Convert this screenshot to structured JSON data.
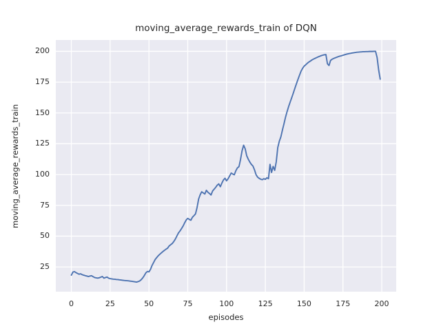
{
  "colors": {
    "figure_bg": "#FFFFFF",
    "axes_bg": "#EAEAF2",
    "grid": "#FFFFFF",
    "text": "#262626",
    "line": "#4C72B0"
  },
  "chart_data": {
    "type": "line",
    "title": "moving_average_rewards_train of DQN",
    "xlabel": "episodes",
    "ylabel": "moving_average_rewards_train",
    "xlim": [
      -10.0,
      209.3
    ],
    "ylim": [
      4.9,
      209.2
    ],
    "x_ticks": [
      0,
      25,
      50,
      75,
      100,
      125,
      150,
      175,
      200
    ],
    "y_ticks": [
      25,
      50,
      75,
      100,
      125,
      150,
      175,
      200
    ],
    "grid": true,
    "legend_position": "none",
    "series": [
      {
        "name": "moving_average_rewards_train",
        "color": "#4C72B0",
        "points": [
          [
            0,
            18.3
          ],
          [
            1,
            20.8
          ],
          [
            2,
            21.2
          ],
          [
            3,
            20.4
          ],
          [
            4,
            19.7
          ],
          [
            5,
            19.1
          ],
          [
            6,
            19.4
          ],
          [
            7,
            18.7
          ],
          [
            8,
            18.3
          ],
          [
            9,
            17.9
          ],
          [
            10,
            17.6
          ],
          [
            11,
            17.2
          ],
          [
            12,
            17.6
          ],
          [
            13,
            17.9
          ],
          [
            14,
            17.1
          ],
          [
            15,
            16.4
          ],
          [
            16,
            16.1
          ],
          [
            17,
            15.9
          ],
          [
            18,
            16.2
          ],
          [
            19,
            16.7
          ],
          [
            20,
            17.2
          ],
          [
            21,
            15.9
          ],
          [
            22,
            16.4
          ],
          [
            23,
            16.8
          ],
          [
            24,
            15.9
          ],
          [
            25,
            15.5
          ],
          [
            26,
            15.3
          ],
          [
            27,
            15.1
          ],
          [
            28,
            15.0
          ],
          [
            29,
            14.8
          ],
          [
            30,
            14.7
          ],
          [
            31,
            14.5
          ],
          [
            32,
            14.4
          ],
          [
            33,
            14.2
          ],
          [
            34,
            14.0
          ],
          [
            35,
            13.9
          ],
          [
            36,
            13.8
          ],
          [
            37,
            13.7
          ],
          [
            38,
            13.5
          ],
          [
            39,
            13.3
          ],
          [
            40,
            13.1
          ],
          [
            41,
            12.9
          ],
          [
            42,
            12.7
          ],
          [
            43,
            13.1
          ],
          [
            44,
            13.6
          ],
          [
            45,
            14.6
          ],
          [
            46,
            16.1
          ],
          [
            47,
            18.0
          ],
          [
            48,
            20.2
          ],
          [
            49,
            21.3
          ],
          [
            50,
            21.0
          ],
          [
            51,
            23.0
          ],
          [
            52,
            26.2
          ],
          [
            53,
            28.6
          ],
          [
            54,
            31.0
          ],
          [
            55,
            32.6
          ],
          [
            56,
            34.1
          ],
          [
            57,
            35.3
          ],
          [
            58,
            36.4
          ],
          [
            59,
            37.5
          ],
          [
            60,
            38.5
          ],
          [
            61,
            39.4
          ],
          [
            62,
            40.2
          ],
          [
            63,
            42.0
          ],
          [
            64,
            43.0
          ],
          [
            65,
            44.0
          ],
          [
            66,
            45.6
          ],
          [
            67,
            47.6
          ],
          [
            68,
            50.1
          ],
          [
            69,
            52.6
          ],
          [
            70,
            54.2
          ],
          [
            71,
            56.1
          ],
          [
            72,
            58.2
          ],
          [
            73,
            60.8
          ],
          [
            74,
            63.1
          ],
          [
            75,
            64.4
          ],
          [
            76,
            63.6
          ],
          [
            77,
            62.9
          ],
          [
            78,
            65.3
          ],
          [
            79,
            66.6
          ],
          [
            80,
            68.1
          ],
          [
            81,
            73.2
          ],
          [
            82,
            80.1
          ],
          [
            83,
            83.6
          ],
          [
            84,
            86.0
          ],
          [
            85,
            85.1
          ],
          [
            86,
            84.2
          ],
          [
            87,
            87.2
          ],
          [
            88,
            85.6
          ],
          [
            89,
            84.6
          ],
          [
            90,
            83.4
          ],
          [
            91,
            86.6
          ],
          [
            92,
            88.1
          ],
          [
            93,
            89.6
          ],
          [
            94,
            91.4
          ],
          [
            95,
            92.4
          ],
          [
            96,
            90.1
          ],
          [
            97,
            93.1
          ],
          [
            98,
            95.6
          ],
          [
            99,
            97.0
          ],
          [
            100,
            94.9
          ],
          [
            101,
            96.6
          ],
          [
            102,
            98.9
          ],
          [
            103,
            101.2
          ],
          [
            104,
            100.4
          ],
          [
            105,
            99.8
          ],
          [
            106,
            103.1
          ],
          [
            107,
            105.4
          ],
          [
            108,
            106.4
          ],
          [
            109,
            112.2
          ],
          [
            110,
            119.3
          ],
          [
            111,
            123.8
          ],
          [
            112,
            120.9
          ],
          [
            113,
            115.2
          ],
          [
            114,
            112.4
          ],
          [
            115,
            110.1
          ],
          [
            116,
            108.2
          ],
          [
            117,
            106.9
          ],
          [
            118,
            103.8
          ],
          [
            119,
            99.9
          ],
          [
            120,
            97.9
          ],
          [
            121,
            96.9
          ],
          [
            122,
            96.2
          ],
          [
            123,
            95.8
          ],
          [
            124,
            96.6
          ],
          [
            125,
            96.1
          ],
          [
            126,
            97.4
          ],
          [
            127,
            96.6
          ],
          [
            128,
            108.3
          ],
          [
            129,
            101.7
          ],
          [
            130,
            106.6
          ],
          [
            131,
            103.4
          ],
          [
            132,
            110.2
          ],
          [
            133,
            121.9
          ],
          [
            134,
            127.1
          ],
          [
            135,
            130.6
          ],
          [
            136,
            136.1
          ],
          [
            137,
            141.2
          ],
          [
            138,
            146.6
          ],
          [
            139,
            151.1
          ],
          [
            140,
            155.2
          ],
          [
            141,
            158.9
          ],
          [
            142,
            162.4
          ],
          [
            143,
            166.1
          ],
          [
            144,
            169.9
          ],
          [
            145,
            173.6
          ],
          [
            146,
            177.2
          ],
          [
            147,
            180.6
          ],
          [
            148,
            183.9
          ],
          [
            149,
            186.2
          ],
          [
            150,
            188.0
          ],
          [
            151,
            189.1
          ],
          [
            152,
            190.3
          ],
          [
            153,
            191.3
          ],
          [
            154,
            192.1
          ],
          [
            155,
            193.0
          ],
          [
            156,
            193.7
          ],
          [
            157,
            194.3
          ],
          [
            158,
            194.9
          ],
          [
            159,
            195.5
          ],
          [
            160,
            196.0
          ],
          [
            161,
            196.5
          ],
          [
            162,
            196.9
          ],
          [
            163,
            197.2
          ],
          [
            164,
            197.4
          ],
          [
            165,
            189.9
          ],
          [
            166,
            188.5
          ],
          [
            167,
            192.6
          ],
          [
            168,
            193.6
          ],
          [
            169,
            194.2
          ],
          [
            170,
            194.7
          ],
          [
            171,
            195.2
          ],
          [
            172,
            195.7
          ],
          [
            173,
            196.1
          ],
          [
            174,
            196.4
          ],
          [
            175,
            196.8
          ],
          [
            176,
            197.2
          ],
          [
            177,
            197.6
          ],
          [
            178,
            197.9
          ],
          [
            179,
            198.2
          ],
          [
            180,
            198.4
          ],
          [
            181,
            198.7
          ],
          [
            182,
            198.9
          ],
          [
            183,
            199.1
          ],
          [
            184,
            199.3
          ],
          [
            185,
            199.4
          ],
          [
            186,
            199.5
          ],
          [
            187,
            199.6
          ],
          [
            188,
            199.7
          ],
          [
            189,
            199.7
          ],
          [
            190,
            199.8
          ],
          [
            191,
            199.8
          ],
          [
            192,
            199.9
          ],
          [
            193,
            199.9
          ],
          [
            194,
            199.9
          ],
          [
            195,
            200.0
          ],
          [
            196,
            200.0
          ],
          [
            197,
            194.9
          ],
          [
            198,
            184.8
          ],
          [
            199,
            177.4
          ]
        ]
      }
    ]
  }
}
